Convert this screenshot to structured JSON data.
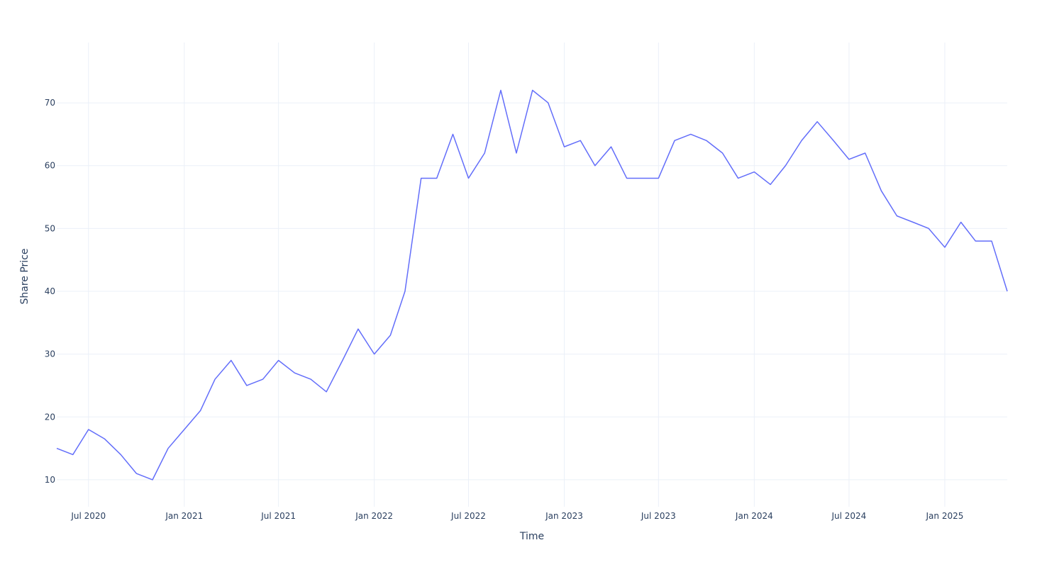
{
  "chart_data": {
    "type": "line",
    "x_label": "Time",
    "y_label": "Share Price",
    "x": [
      "2020-05",
      "2020-06",
      "2020-07",
      "2020-08",
      "2020-09",
      "2020-10",
      "2020-11",
      "2020-12",
      "2021-01",
      "2021-02",
      "2021-03",
      "2021-04",
      "2021-05",
      "2021-06",
      "2021-07",
      "2021-08",
      "2021-09",
      "2021-10",
      "2021-11",
      "2021-12",
      "2022-01",
      "2022-02",
      "2022-03",
      "2022-04",
      "2022-05",
      "2022-06",
      "2022-07",
      "2022-08",
      "2022-09",
      "2022-10",
      "2022-11",
      "2022-12",
      "2023-01",
      "2023-02",
      "2023-03",
      "2023-04",
      "2023-05",
      "2023-06",
      "2023-07",
      "2023-08",
      "2023-09",
      "2023-10",
      "2023-11",
      "2023-12",
      "2024-01",
      "2024-02",
      "2024-03",
      "2024-04",
      "2024-05",
      "2024-06",
      "2024-07",
      "2024-08",
      "2024-09",
      "2024-10",
      "2024-11",
      "2024-12",
      "2025-01",
      "2025-02",
      "2025-03",
      "2025-04",
      "2025-05"
    ],
    "series": [
      {
        "name": "Share Price",
        "color": "#636efa",
        "values": [
          15,
          14,
          18,
          16.5,
          14,
          11,
          10,
          15,
          18,
          21,
          26,
          29,
          25,
          26,
          29,
          27,
          26,
          24,
          29,
          34,
          30,
          33,
          40,
          58,
          58,
          65,
          58,
          62,
          72,
          62,
          72,
          70,
          63,
          64,
          60,
          63,
          58,
          58,
          58,
          64,
          65,
          64,
          62,
          58,
          59,
          57,
          60,
          64,
          67,
          64,
          61,
          62,
          56,
          52,
          51,
          50,
          47,
          51,
          48,
          48,
          40
        ]
      }
    ],
    "xlim": [
      "2020-05",
      "2025-05"
    ],
    "xticks": [
      {
        "value": "2020-07",
        "label": "Jul 2020"
      },
      {
        "value": "2021-01",
        "label": "Jan 2021"
      },
      {
        "value": "2021-07",
        "label": "Jul 2021"
      },
      {
        "value": "2022-01",
        "label": "Jan 2022"
      },
      {
        "value": "2022-07",
        "label": "Jul 2022"
      },
      {
        "value": "2023-01",
        "label": "Jan 2023"
      },
      {
        "value": "2023-07",
        "label": "Jul 2023"
      },
      {
        "value": "2024-01",
        "label": "Jan 2024"
      },
      {
        "value": "2024-07",
        "label": "Jul 2024"
      },
      {
        "value": "2025-01",
        "label": "Jan 2025"
      }
    ],
    "ylim": [
      5.7,
      79.6
    ],
    "yticks": [
      10,
      20,
      30,
      40,
      50,
      60,
      70
    ],
    "grid": true
  }
}
